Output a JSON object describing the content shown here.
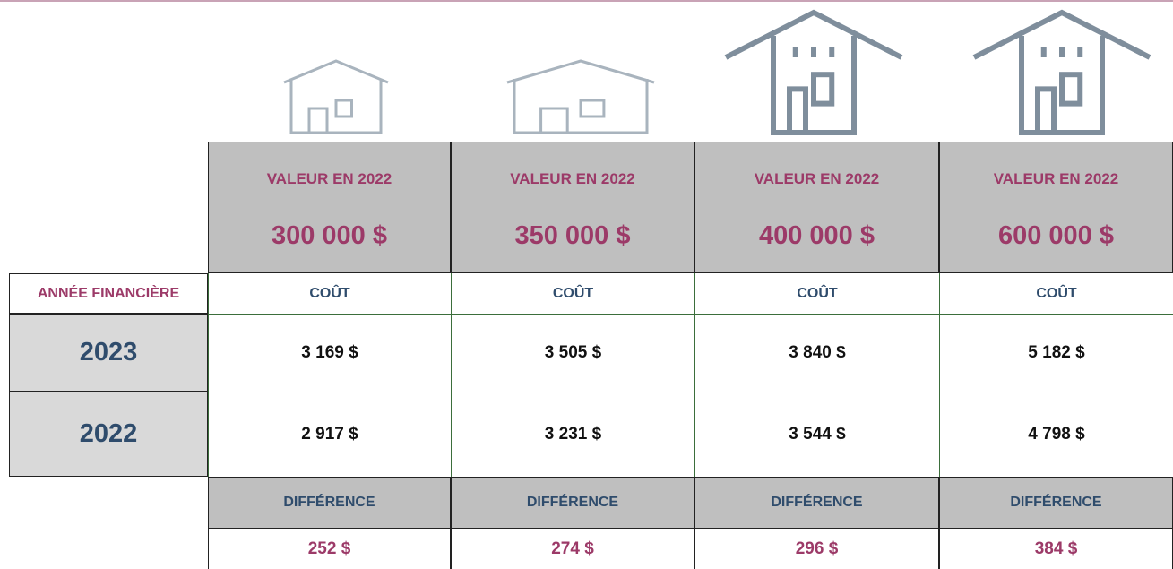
{
  "year_header": "ANNÉE FINANCIÈRE",
  "columns": [
    {
      "value_label": "VALEUR EN 2022",
      "value": "300 000 $",
      "cost_label": "COÛT",
      "difference_label": "DIFFÉRENCE",
      "difference": "252 $"
    },
    {
      "value_label": "VALEUR EN 2022",
      "value": "350 000 $",
      "cost_label": "COÛT",
      "difference_label": "DIFFÉRENCE",
      "difference": "274 $"
    },
    {
      "value_label": "VALEUR EN 2022",
      "value": "400 000 $",
      "cost_label": "COÛT",
      "difference_label": "DIFFÉRENCE",
      "difference": "296 $"
    },
    {
      "value_label": "VALEUR EN 2022",
      "value": "600 000 $",
      "cost_label": "COÛT",
      "difference_label": "DIFFÉRENCE",
      "difference": "384 $"
    }
  ],
  "rows": [
    {
      "year": "2023",
      "costs": [
        "3 169 $",
        "3 505 $",
        "3 840 $",
        "5 182 $"
      ]
    },
    {
      "year": "2022",
      "costs": [
        "2 917 $",
        "3 231 $",
        "3 544 $",
        "4 798 $"
      ]
    }
  ]
}
